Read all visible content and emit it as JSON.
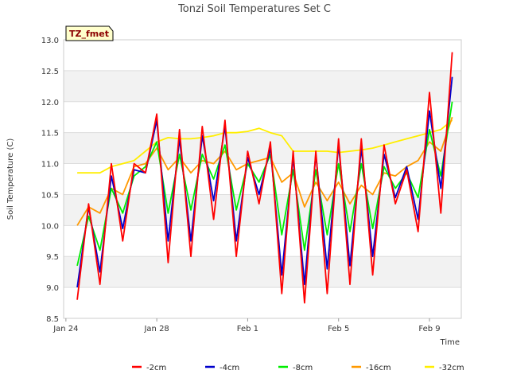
{
  "chart_data": {
    "type": "line",
    "title": "Tonzi Soil Temperatures Set C",
    "tag": "TZ_fmet",
    "xlabel": "Time",
    "ylabel": "Soil Temperature (C)",
    "ylim": [
      8.5,
      13.0
    ],
    "yticks": [
      "8.5",
      "9.0",
      "9.5",
      "10.0",
      "10.5",
      "11.0",
      "11.5",
      "12.0",
      "12.5",
      "13.0"
    ],
    "xlim": [
      -0.1,
      17.4
    ],
    "xtick_values": [
      0,
      4,
      8,
      12,
      16
    ],
    "xticks": [
      "Jan 24",
      "Jan 28",
      "Feb 1",
      "Feb 5",
      "Feb 9"
    ],
    "grid": true,
    "legend_position": "bottom",
    "x": [
      0.5,
      1.0,
      1.5,
      2.0,
      2.5,
      3.0,
      3.5,
      4.0,
      4.5,
      5.0,
      5.5,
      6.0,
      6.5,
      7.0,
      7.5,
      8.0,
      8.5,
      9.0,
      9.5,
      10.0,
      10.5,
      11.0,
      11.5,
      12.0,
      12.5,
      13.0,
      13.5,
      14.0,
      14.5,
      15.0,
      15.5,
      16.0,
      16.5,
      17.0
    ],
    "series": [
      {
        "name": "-2cm",
        "color": "#ff0000",
        "values": [
          8.8,
          10.35,
          9.05,
          11.0,
          9.75,
          11.0,
          10.85,
          11.8,
          9.4,
          11.55,
          9.5,
          11.6,
          10.1,
          11.7,
          9.5,
          11.2,
          10.35,
          11.35,
          8.9,
          11.2,
          8.75,
          11.2,
          8.9,
          11.4,
          9.05,
          11.4,
          9.2,
          11.3,
          10.35,
          10.9,
          9.9,
          12.15,
          10.2,
          12.8
        ]
      },
      {
        "name": "-4cm",
        "color": "#0000cc",
        "values": [
          9.0,
          10.3,
          9.25,
          10.8,
          9.95,
          10.9,
          10.85,
          11.7,
          9.75,
          11.4,
          9.75,
          11.45,
          10.4,
          11.6,
          9.75,
          11.1,
          10.5,
          11.25,
          9.2,
          11.1,
          9.05,
          11.15,
          9.3,
          11.3,
          9.35,
          11.25,
          9.5,
          11.15,
          10.45,
          10.95,
          10.1,
          11.85,
          10.6,
          12.4
        ]
      },
      {
        "name": "-8cm",
        "color": "#00ee00",
        "values": [
          9.35,
          10.15,
          9.6,
          10.6,
          10.2,
          10.8,
          10.95,
          11.35,
          10.2,
          11.15,
          10.25,
          11.15,
          10.75,
          11.3,
          10.25,
          11.0,
          10.7,
          11.15,
          9.85,
          10.9,
          9.6,
          10.9,
          9.85,
          11.0,
          9.9,
          11.0,
          9.95,
          10.95,
          10.6,
          10.85,
          10.45,
          11.55,
          10.8,
          12.0
        ]
      },
      {
        "name": "-16cm",
        "color": "#ff9900",
        "values": [
          10.0,
          10.3,
          10.2,
          10.6,
          10.5,
          10.95,
          11.0,
          11.25,
          10.9,
          11.1,
          10.85,
          11.05,
          11.0,
          11.2,
          10.9,
          11.0,
          11.05,
          11.1,
          10.7,
          10.85,
          10.3,
          10.7,
          10.4,
          10.7,
          10.35,
          10.65,
          10.5,
          10.85,
          10.8,
          10.95,
          11.05,
          11.35,
          11.2,
          11.75
        ]
      },
      {
        "name": "-32cm",
        "color": "#ffee00",
        "values": [
          10.85,
          10.85,
          10.85,
          10.95,
          11.0,
          11.05,
          11.2,
          11.35,
          11.42,
          11.4,
          11.4,
          11.42,
          11.45,
          11.5,
          11.5,
          11.52,
          11.57,
          11.5,
          11.45,
          11.2,
          11.2,
          11.2,
          11.2,
          11.18,
          11.2,
          11.22,
          11.25,
          11.3,
          11.35,
          11.4,
          11.45,
          11.5,
          11.55,
          11.7
        ]
      }
    ]
  }
}
